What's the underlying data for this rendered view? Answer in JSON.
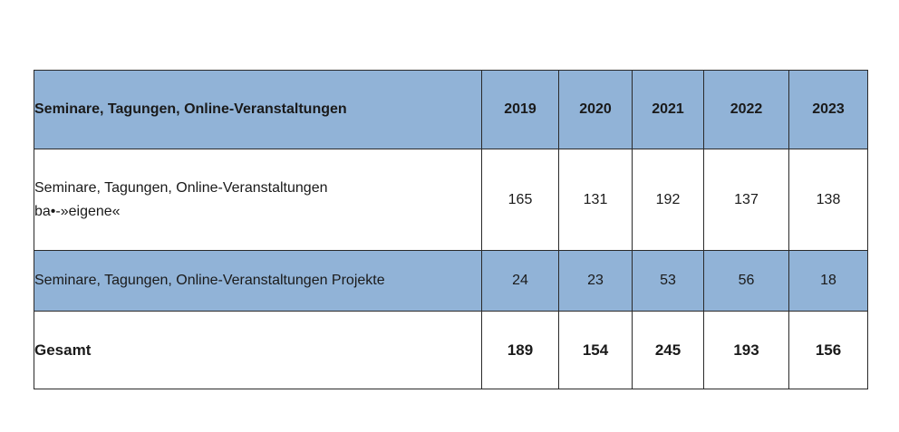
{
  "table": {
    "header": {
      "label": "Seminare, Tagungen, Online-Veranstaltungen",
      "years": [
        "2019",
        "2020",
        "2021",
        "2022",
        "2023"
      ]
    },
    "rows": [
      {
        "label_line1": "Seminare, Tagungen, Online-Veranstaltungen",
        "label_line2": "ba•-»eigene«",
        "values": [
          "165",
          "131",
          "192",
          "137",
          "138"
        ]
      },
      {
        "label": "Seminare, Tagungen, Online-Veranstaltungen Projekte",
        "values": [
          "24",
          "23",
          "53",
          "56",
          "18"
        ]
      }
    ],
    "total": {
      "label": "Gesamt",
      "values": [
        "189",
        "154",
        "245",
        "193",
        "156"
      ]
    }
  }
}
